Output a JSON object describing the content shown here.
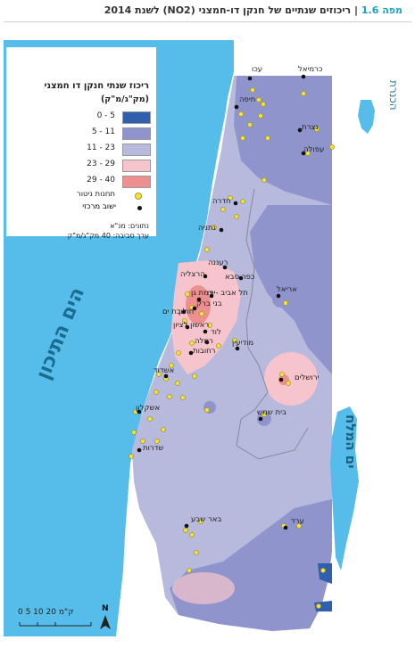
{
  "header": {
    "map_label": "מפה 1.6",
    "separator": "|",
    "title": "ריכוזים שנתיים של חנקן דו-חמצני (NO2) לשנת 2014"
  },
  "legend": {
    "title": "ריכוז שנתי חנקן דו חמצני",
    "unit": "(מק\"ג/מ\"ק)",
    "classes": [
      {
        "range": "0 - 5",
        "color": "#2f5fad"
      },
      {
        "range": "5 - 11",
        "color": "#8f95cc"
      },
      {
        "range": "11 - 23",
        "color": "#b7b9dd"
      },
      {
        "range": "23 - 29",
        "color": "#f6c4cc"
      },
      {
        "range": "29 - 40",
        "color": "#ee8f8f"
      }
    ],
    "station_label": "תחנות ניטור",
    "city_label": "ישוב מרכזי",
    "source": "נתונים: מנ\"א",
    "ambient": "ערך סביבה: 40 מק\"ג/מ\"ק"
  },
  "seas": {
    "mediterranean": "הים התיכון",
    "kinneret": "הכנרת",
    "dead_sea": "ים המלח"
  },
  "places": [
    "עכו",
    "כרמיאל",
    "חיפה",
    "נצרת",
    "עפולה",
    "חדרה",
    "נתניה",
    "רעננה",
    "הרצליה",
    "כפר סבא",
    "רמת גן",
    "תל אביב -יפו",
    "בני ברק",
    "חולון",
    "בת ים",
    "אריאל",
    "ראשון לציון",
    "לוד",
    "רמלה",
    "רחובות",
    "מודיעין",
    "אשדוד",
    "ירושלים",
    "בית שמש",
    "אשקלון",
    "שדרות",
    "באר שבע",
    "ערד"
  ],
  "scale": {
    "label": "0  5 10     20 ק\"מ",
    "north": "N"
  },
  "colors": {
    "sea": "#56bdea",
    "land_outside": "#ffffff",
    "zone_low": "#8f95cc",
    "zone_base": "#b7b9dd",
    "zone_hot": "#f6c4cc",
    "zone_max": "#ee8f8f",
    "zone_min": "#2f5fad"
  }
}
